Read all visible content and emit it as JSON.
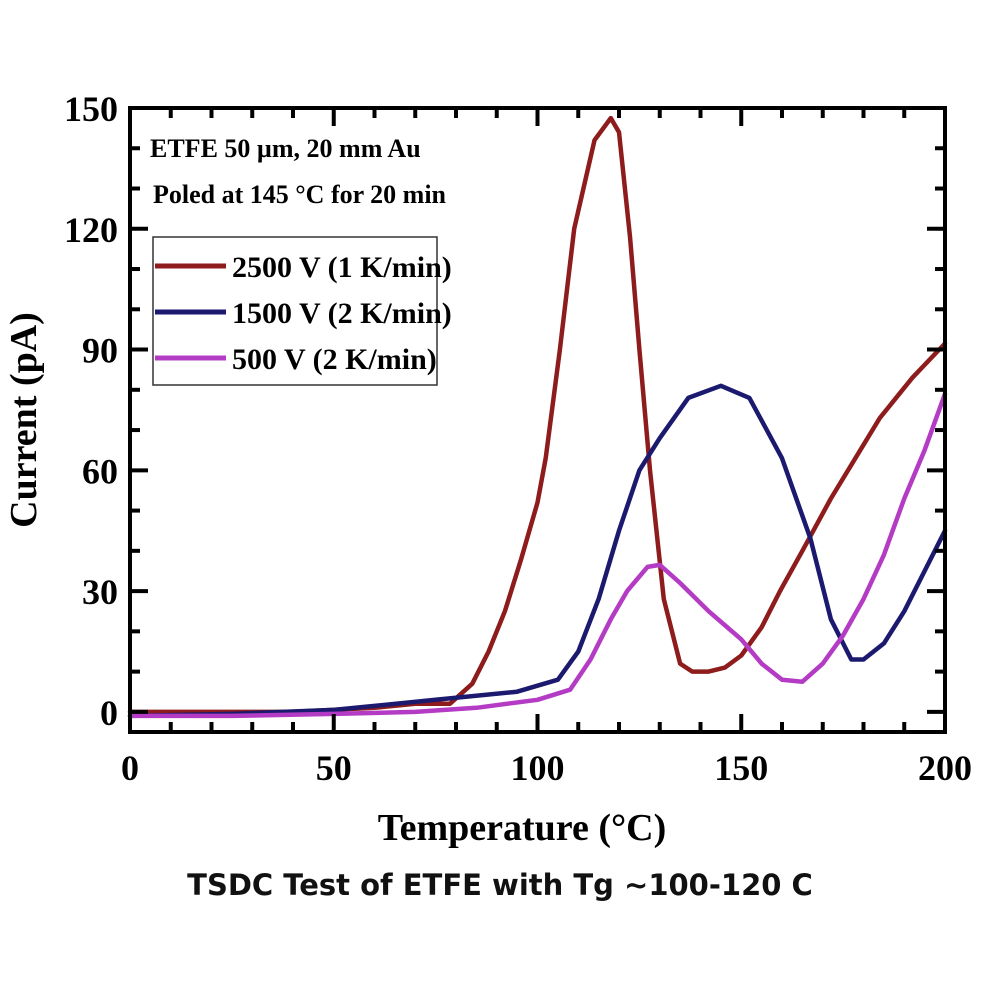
{
  "chart_data": {
    "type": "line",
    "xlabel": "Temperature (°C)",
    "ylabel": "Current (pA)",
    "xlim": [
      0,
      200
    ],
    "ylim": [
      -5,
      150
    ],
    "xticks": [
      0,
      50,
      100,
      150,
      200
    ],
    "yticks": [
      0,
      30,
      60,
      90,
      120,
      150
    ],
    "grid": false,
    "legend_position": "top-left",
    "annotations": [
      "ETFE 50 µm, 20 mm Au",
      "Poled at 145 °C for 20 min"
    ],
    "series": [
      {
        "name": "2500 V (1 K/min)",
        "color": "#8e1c1c",
        "x": [
          0,
          20,
          40,
          60,
          70,
          78.5,
          84,
          88,
          92,
          96,
          100,
          102,
          105.5,
          109,
          114,
          118,
          120,
          122.7,
          125,
          127.6,
          131,
          135,
          138,
          142,
          146,
          150,
          155,
          159.5,
          165,
          172,
          178,
          184,
          192,
          200
        ],
        "y": [
          0,
          0,
          0,
          1,
          2,
          2,
          7,
          15,
          25,
          38,
          52,
          63,
          90,
          120,
          142,
          147.5,
          144,
          118,
          90,
          60,
          28,
          12,
          10,
          10,
          11,
          14,
          21,
          30,
          40,
          53,
          63,
          73,
          83,
          91.5
        ]
      },
      {
        "name": "1500 V (2 K/min)",
        "color": "#1c1a6e",
        "x": [
          0,
          25,
          50,
          75,
          95,
          105,
          110,
          115,
          120,
          125,
          130,
          137,
          145,
          152,
          160,
          167,
          172,
          177,
          180,
          185,
          190,
          195,
          200
        ],
        "y": [
          -1,
          -0.5,
          0.5,
          3,
          5,
          8,
          15,
          28,
          45,
          60,
          68,
          78,
          81,
          78,
          63,
          43,
          23,
          13,
          13,
          17,
          25,
          35,
          45
        ]
      },
      {
        "name": "500 V (2 K/min)",
        "color": "#b43cc4",
        "x": [
          0,
          25,
          50,
          70,
          85,
          100,
          108,
          113,
          118,
          122,
          127,
          130,
          135,
          142,
          150,
          155,
          160,
          165,
          170,
          175,
          180,
          185,
          190,
          195,
          200
        ],
        "y": [
          -1,
          -1,
          -0.5,
          0,
          1,
          3,
          5.5,
          13,
          23,
          30,
          36,
          36.5,
          32,
          25,
          18,
          12,
          8,
          7.5,
          12,
          19,
          28,
          39,
          53,
          65,
          79
        ]
      }
    ]
  },
  "caption": "TSDC Test of ETFE with Tg ~100-120 C"
}
